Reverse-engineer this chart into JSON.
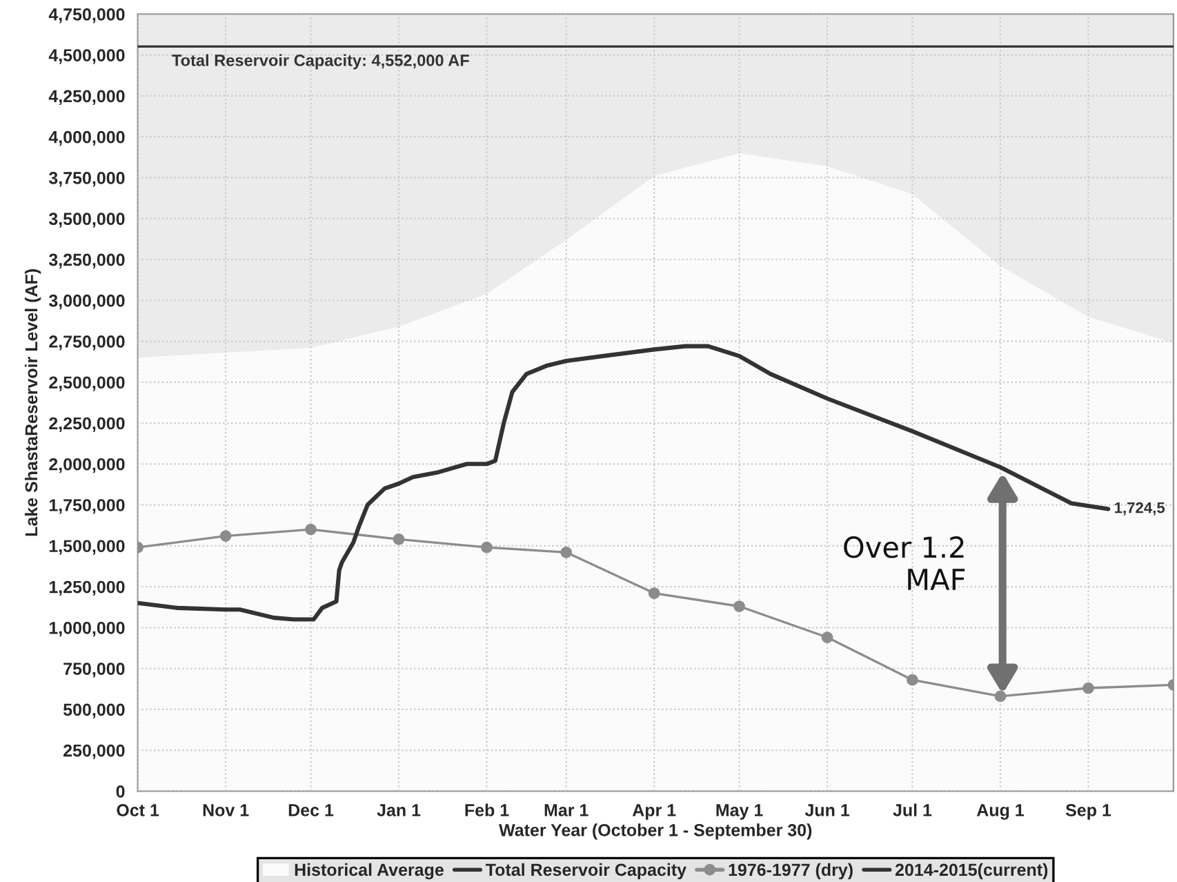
{
  "chart_data": {
    "type": "line",
    "xlabel": "Water Year (October 1 - September 30)",
    "ylabel": "Lake ShastaReservoir Level (AF)",
    "xlim": [
      "2014-10-01",
      "2015-10-01"
    ],
    "xticks": [
      {
        "value": "2014-10-01",
        "label": "Oct 1"
      },
      {
        "value": "2014-11-01",
        "label": "Nov 1"
      },
      {
        "value": "2014-12-01",
        "label": "Dec 1"
      },
      {
        "value": "2015-01-01",
        "label": "Jan 1"
      },
      {
        "value": "2015-02-01",
        "label": "Feb 1"
      },
      {
        "value": "2015-03-01",
        "label": "Mar 1"
      },
      {
        "value": "2015-04-01",
        "label": "Apr 1"
      },
      {
        "value": "2015-05-01",
        "label": "May 1"
      },
      {
        "value": "2015-06-01",
        "label": "Jun 1"
      },
      {
        "value": "2015-07-01",
        "label": "Jul 1"
      },
      {
        "value": "2015-08-01",
        "label": "Aug 1"
      },
      {
        "value": "2015-09-01",
        "label": "Sep 1"
      }
    ],
    "ylim": [
      0,
      4750000
    ],
    "yticks": [
      {
        "value": 0,
        "label": "0"
      },
      {
        "value": 250000,
        "label": "250,000"
      },
      {
        "value": 500000,
        "label": "500,000"
      },
      {
        "value": 750000,
        "label": "750,000"
      },
      {
        "value": 1000000,
        "label": "1,000,000"
      },
      {
        "value": 1250000,
        "label": "1,250,000"
      },
      {
        "value": 1500000,
        "label": "1,500,000"
      },
      {
        "value": 1750000,
        "label": "1,750,000"
      },
      {
        "value": 2000000,
        "label": "2,000,000"
      },
      {
        "value": 2250000,
        "label": "2,250,000"
      },
      {
        "value": 2500000,
        "label": "2,500,000"
      },
      {
        "value": 2750000,
        "label": "2,750,000"
      },
      {
        "value": 3000000,
        "label": "3,000,000"
      },
      {
        "value": 3250000,
        "label": "3,250,000"
      },
      {
        "value": 3500000,
        "label": "3,500,000"
      },
      {
        "value": 3750000,
        "label": "3,750,000"
      },
      {
        "value": 4000000,
        "label": "4,000,000"
      },
      {
        "value": 4250000,
        "label": "4,250,000"
      },
      {
        "value": 4500000,
        "label": "4,500,000"
      },
      {
        "value": 4750000,
        "label": "4,750,000"
      }
    ],
    "grid": true,
    "legend": "bottom",
    "series": [
      {
        "name": "Historical Average",
        "type": "area",
        "color": "#fbfbfb",
        "marker": "none",
        "x": [
          "2014-10-01",
          "2014-11-01",
          "2014-12-01",
          "2015-01-01",
          "2015-02-01",
          "2015-03-01",
          "2015-04-01",
          "2015-05-01",
          "2015-06-01",
          "2015-07-01",
          "2015-08-01",
          "2015-09-01",
          "2015-10-01"
        ],
        "values": [
          2650000,
          2680000,
          2710000,
          2840000,
          3040000,
          3370000,
          3760000,
          3900000,
          3820000,
          3650000,
          3210000,
          2900000,
          2740000
        ]
      },
      {
        "name": "Total Reservoir Capacity",
        "color": "#333333",
        "marker": "none",
        "x": [
          "2014-10-01",
          "2015-10-01"
        ],
        "values": [
          4552000,
          4552000
        ]
      },
      {
        "name": "1976-1977 (dry)",
        "color": "#8c8c8c",
        "marker": "circle",
        "x": [
          "2014-10-01",
          "2014-11-01",
          "2014-12-01",
          "2015-01-01",
          "2015-02-01",
          "2015-03-01",
          "2015-04-01",
          "2015-05-01",
          "2015-06-01",
          "2015-07-01",
          "2015-08-01",
          "2015-09-01",
          "2015-10-01"
        ],
        "values": [
          1490000,
          1560000,
          1600000,
          1540000,
          1490000,
          1460000,
          1210000,
          1130000,
          940000,
          680000,
          580000,
          630000,
          650000
        ]
      },
      {
        "name": "2014-2015(current)",
        "color": "#333333",
        "marker": "none",
        "x": [
          "2014-10-01",
          "2014-10-15",
          "2014-11-01",
          "2014-11-06",
          "2014-11-18",
          "2014-11-25",
          "2014-12-02",
          "2014-12-05",
          "2014-12-10",
          "2014-12-11",
          "2014-12-12",
          "2014-12-16",
          "2014-12-18",
          "2014-12-21",
          "2014-12-27",
          "2015-01-01",
          "2015-01-06",
          "2015-01-15",
          "2015-01-25",
          "2015-02-01",
          "2015-02-04",
          "2015-02-07",
          "2015-02-10",
          "2015-02-15",
          "2015-02-22",
          "2015-03-01",
          "2015-03-14",
          "2015-04-01",
          "2015-04-12",
          "2015-04-20",
          "2015-05-01",
          "2015-05-12",
          "2015-06-01",
          "2015-07-01",
          "2015-08-01",
          "2015-08-26",
          "2015-09-08"
        ],
        "values": [
          1150000,
          1120000,
          1110000,
          1110000,
          1060000,
          1050000,
          1050000,
          1120000,
          1160000,
          1350000,
          1400000,
          1520000,
          1620000,
          1750000,
          1850000,
          1880000,
          1920000,
          1950000,
          2000000,
          2000000,
          2020000,
          2250000,
          2440000,
          2550000,
          2600000,
          2630000,
          2660000,
          2700000,
          2720000,
          2720000,
          2660000,
          2550000,
          2400000,
          2200000,
          1980000,
          1760000,
          1725000
        ]
      }
    ],
    "annotations": [
      {
        "text": "Total Reservoir Capacity: 4,552,000 AF",
        "x": "2014-10-13",
        "y": 4552000
      },
      {
        "text": "1,724,5",
        "x": "2015-09-08",
        "y": 1725000
      },
      "Over 1.2\nMAF"
    ]
  }
}
